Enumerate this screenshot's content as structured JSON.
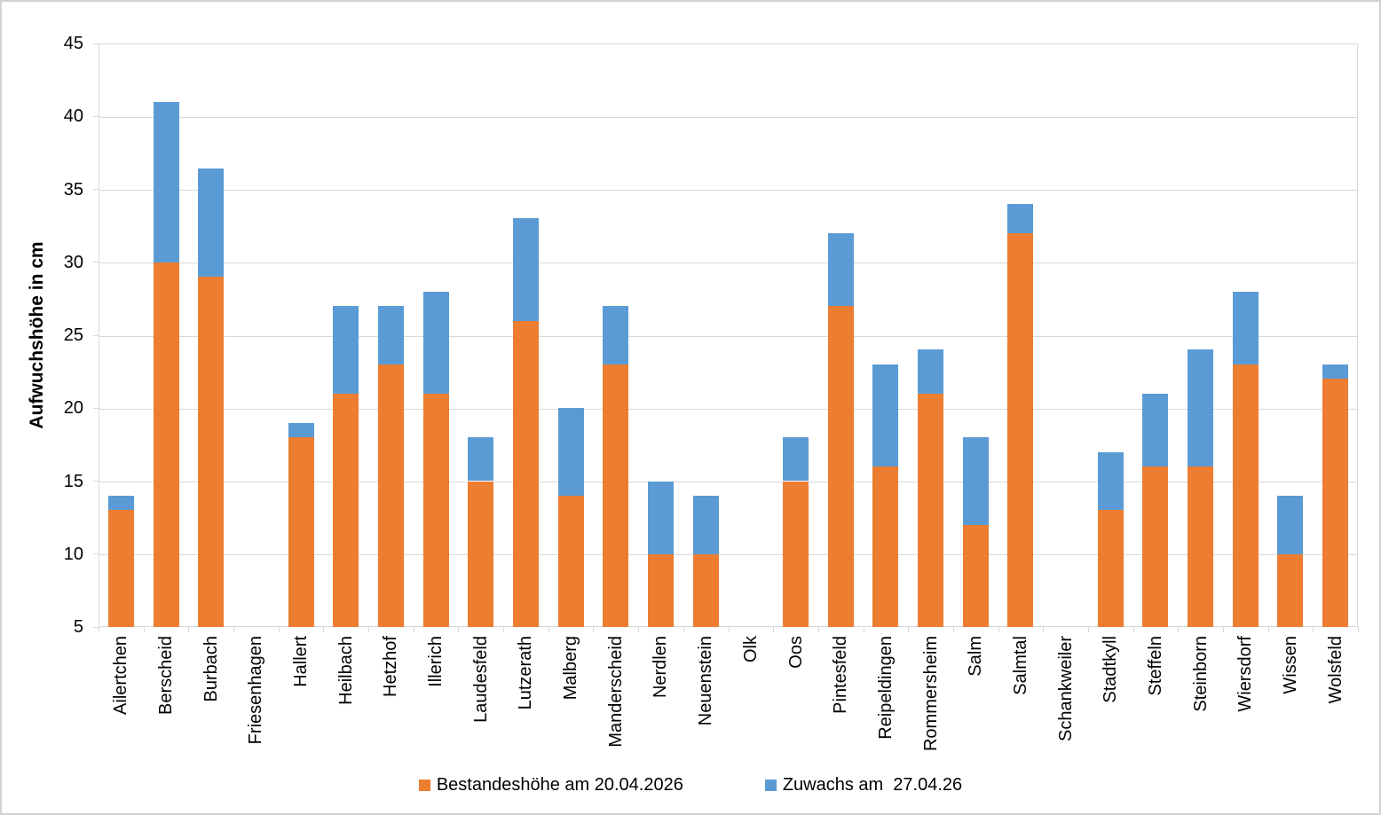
{
  "chart_data": {
    "type": "bar",
    "stacked": true,
    "title": "",
    "xlabel": "",
    "ylabel": "Aufwuchshöhe in cm",
    "ylim": [
      5,
      45
    ],
    "yticks": [
      5,
      10,
      15,
      20,
      25,
      30,
      35,
      40,
      45
    ],
    "grid": "horizontal",
    "legend_position": "bottom",
    "categories": [
      "Ailertchen",
      "Berscheid",
      "Burbach",
      "Friesenhagen",
      "Hallert",
      "Heilbach",
      "Hetzhof",
      "Illerich",
      "Laudesfeld",
      "Lutzerath",
      "Malberg",
      "Manderscheid",
      "Nerdlen",
      "Neuenstein",
      "Olk",
      "Oos",
      "Pintesfeld",
      "Reipeldingen",
      "Rommersheim",
      "Salm",
      "Salmtal",
      "Schankweiler",
      "Stadtkyll",
      "Steffeln",
      "Steinborn",
      "Wiersdorf",
      "Wissen",
      "Wolsfeld"
    ],
    "series": [
      {
        "name": "Bestandeshöhe am 20.04.2026",
        "color": "#ED7D31",
        "values": [
          13,
          30,
          29,
          null,
          18,
          21,
          23,
          21,
          15,
          26,
          14,
          23,
          10,
          10,
          null,
          15,
          27,
          16,
          21,
          12,
          32,
          null,
          13,
          16,
          16,
          23,
          10,
          22
        ]
      },
      {
        "name": "Zuwachs am  27.04.26",
        "color": "#5B9BD5",
        "values": [
          1,
          11,
          7.4,
          null,
          1,
          6,
          4,
          7,
          3,
          7,
          6,
          4,
          5,
          4,
          null,
          3,
          5,
          7,
          3,
          6,
          2,
          null,
          4,
          5,
          8,
          5,
          4,
          1
        ]
      }
    ],
    "stack_totals": [
      14,
      41,
      36.4,
      null,
      19,
      27,
      27,
      28,
      18,
      33,
      20,
      27,
      15,
      14,
      null,
      18,
      32,
      23,
      24,
      18,
      34,
      null,
      17,
      21,
      24,
      28,
      14,
      23
    ],
    "colors": {
      "gridline": "#D9D9D9",
      "axis": "#D9D9D9",
      "frame_border": "#D2D2D2",
      "text": "#000000"
    }
  }
}
